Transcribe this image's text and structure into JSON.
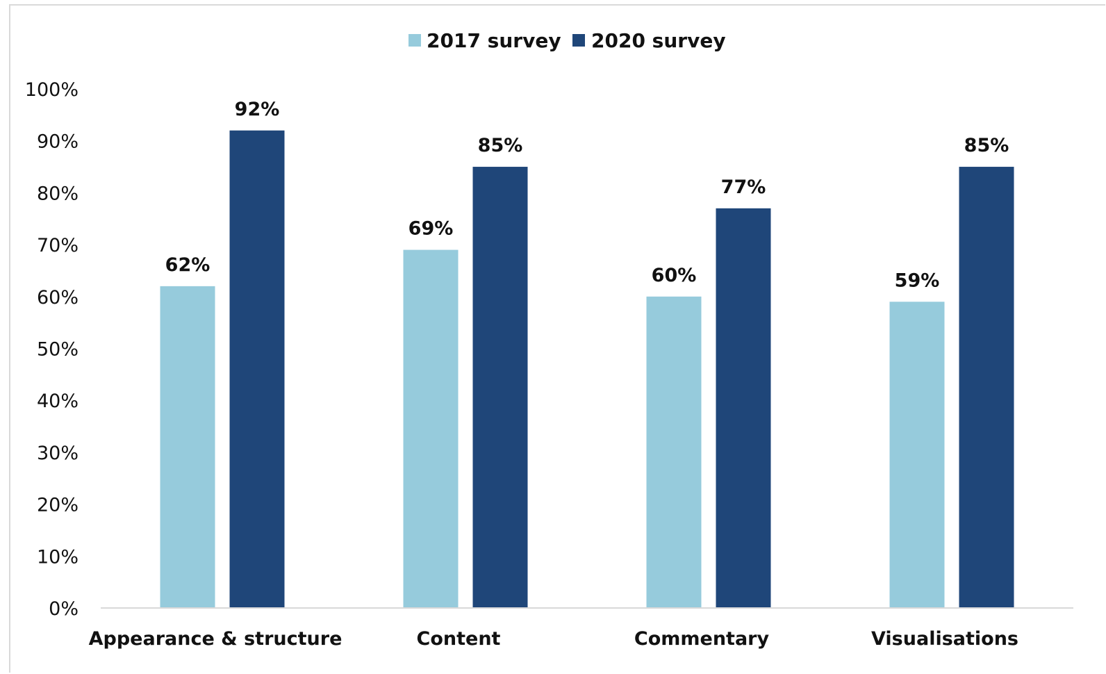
{
  "chart_data": {
    "type": "bar",
    "categories": [
      "Appearance & structure",
      "Content",
      "Commentary",
      "Visualisations"
    ],
    "series": [
      {
        "name": "2017 survey",
        "color": "#96cbdc",
        "values": [
          62,
          69,
          60,
          59
        ]
      },
      {
        "name": "2020 survey",
        "color": "#1f4679",
        "values": [
          92,
          85,
          77,
          85
        ]
      }
    ],
    "data_labels": [
      [
        "62%",
        "69%",
        "60%",
        "59%"
      ],
      [
        "92%",
        "85%",
        "77%",
        "85%"
      ]
    ],
    "ylim": [
      0,
      100
    ],
    "yticks": [
      0,
      10,
      20,
      30,
      40,
      50,
      60,
      70,
      80,
      90,
      100
    ],
    "ytick_labels": [
      "0%",
      "10%",
      "20%",
      "30%",
      "40%",
      "50%",
      "60%",
      "70%",
      "80%",
      "90%",
      "100%"
    ],
    "grid": false,
    "legend_position": "top-center",
    "axis_color": "#d9d9d9"
  }
}
